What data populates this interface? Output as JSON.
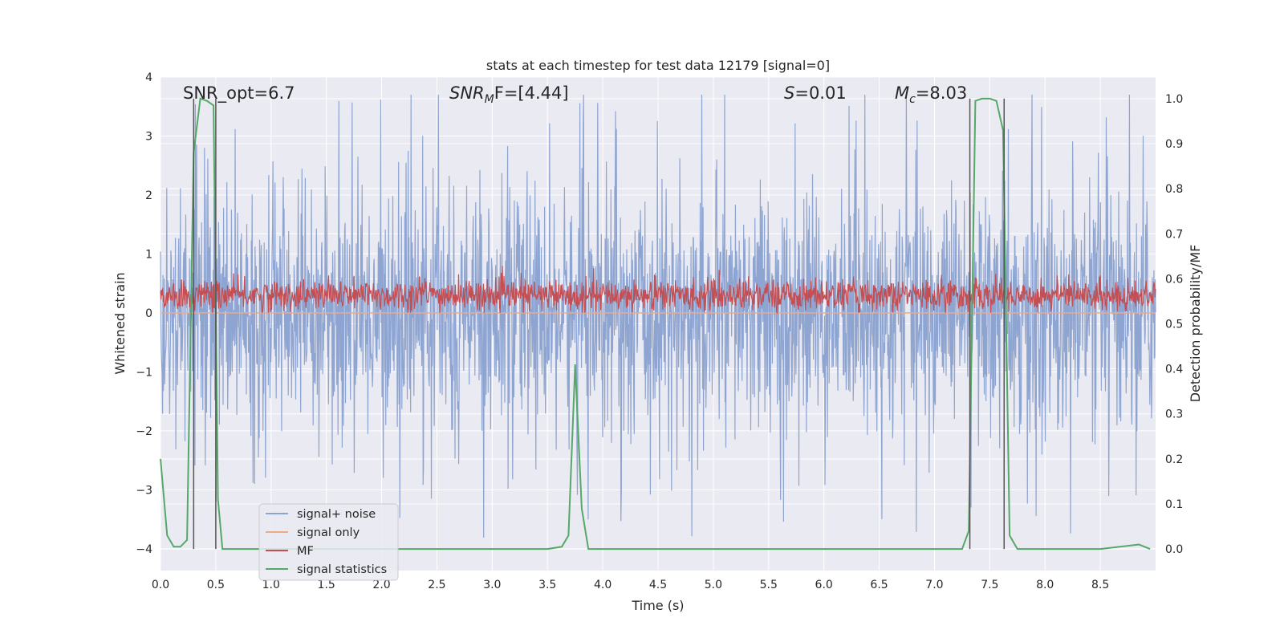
{
  "chart_data": {
    "type": "line",
    "title": "stats at each timestep for test data 12179 [signal=0]",
    "xlabel": "Time (s)",
    "ylabel": "Whitened strain",
    "y2label": "Detection probability/MF",
    "xlim": [
      0.0,
      9.0
    ],
    "ylim": [
      -4.37,
      4.0
    ],
    "y2lim": [
      -0.048,
      1.048
    ],
    "xticks": [
      "0.0",
      "0.5",
      "1.0",
      "1.5",
      "2.0",
      "2.5",
      "3.0",
      "3.5",
      "4.0",
      "4.5",
      "5.0",
      "5.5",
      "6.0",
      "6.5",
      "7.0",
      "7.5",
      "8.0",
      "8.5"
    ],
    "yticks": [
      "4",
      "3",
      "2",
      "1",
      "0",
      "−1",
      "−2",
      "−3",
      "−4"
    ],
    "y2ticks": [
      "1.0",
      "0.9",
      "0.8",
      "0.7",
      "0.6",
      "0.5",
      "0.4",
      "0.3",
      "0.2",
      "0.1",
      "0.0"
    ],
    "grid": true,
    "legend_position": "lower-left",
    "annotations": {
      "snr_opt": "SNR_opt=6.7",
      "snr_mf_italic": "SNR",
      "snr_mf_sub": "M",
      "snr_mf_rest": "F=[4.44]",
      "s_italic": "S",
      "s_rest": "=0.01",
      "mc_italic": "M",
      "mc_sub": "c",
      "mc_rest": "=8.03"
    },
    "vertical_lines_x": [
      0.3,
      0.5,
      7.32,
      7.63
    ],
    "series": [
      {
        "name": "signal+ noise",
        "color": "#8fa5d1",
        "axis": "left",
        "envelope": "noise band roughly ±1.5 with peaks to ±4"
      },
      {
        "name": "signal only",
        "color": "#f0a987",
        "axis": "left",
        "values": "zero"
      },
      {
        "name": "MF",
        "color": "#c44e52",
        "axis": "left",
        "envelope": "noisy band between 0 and about 0.7, peak about 1.0"
      },
      {
        "name": "signal statistics",
        "color": "#55a868",
        "axis": "right",
        "x": [
          0.0,
          0.06,
          0.12,
          0.18,
          0.24,
          0.3,
          0.36,
          0.42,
          0.48,
          0.52,
          0.56,
          0.62,
          0.7,
          3.5,
          3.63,
          3.69,
          3.75,
          3.81,
          3.87,
          3.93,
          4.0,
          7.25,
          7.31,
          7.37,
          7.43,
          7.5,
          7.56,
          7.62,
          7.68,
          7.75,
          8.5,
          8.85,
          8.9,
          8.95
        ],
        "values": [
          0.2,
          0.03,
          0.005,
          0.005,
          0.02,
          0.88,
          1.0,
          0.995,
          0.985,
          0.11,
          0.0,
          0.0,
          0.0,
          0.0,
          0.005,
          0.03,
          0.41,
          0.09,
          0.0,
          0.0,
          0.0,
          0.0,
          0.04,
          0.995,
          1.0,
          1.0,
          0.995,
          0.93,
          0.03,
          0.0,
          0.0,
          0.01,
          0.005,
          0.0
        ]
      }
    ]
  }
}
